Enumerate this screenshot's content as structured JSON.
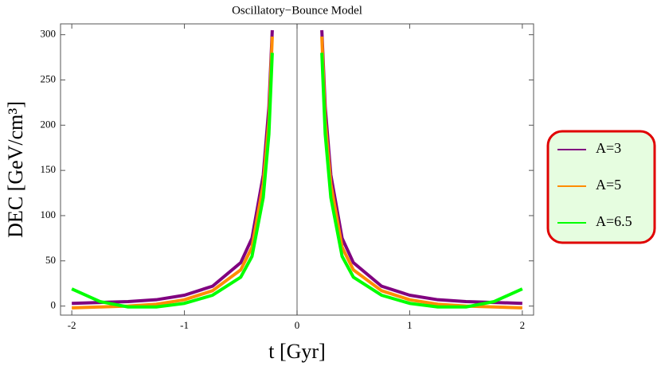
{
  "chart_data": {
    "type": "line",
    "title": "Oscillatory−Bounce Model",
    "x_label": "t [Gyr]",
    "y_label": "DEC [GeV/cm³]",
    "x": [
      -2,
      -1.75,
      -1.5,
      -1.25,
      -1,
      -0.75,
      -0.5,
      -0.4,
      -0.3,
      -0.25,
      -0.22,
      0,
      0.22,
      0.25,
      0.3,
      0.4,
      0.5,
      0.75,
      1,
      1.25,
      1.5,
      1.75,
      2
    ],
    "series": [
      {
        "name": "A=3",
        "color": "#800080",
        "values": [
          3,
          4,
          5,
          7,
          12,
          22,
          48,
          75,
          145,
          220,
          305,
          null,
          305,
          220,
          145,
          75,
          48,
          22,
          12,
          7,
          5,
          4,
          3
        ]
      },
      {
        "name": "A=5",
        "color": "#ff8c00",
        "values": [
          -2,
          -1,
          0,
          2,
          7,
          17,
          40,
          65,
          135,
          205,
          298,
          null,
          298,
          205,
          135,
          65,
          40,
          17,
          7,
          2,
          0,
          -1,
          -2
        ]
      },
      {
        "name": "A=6.5",
        "color": "#00ff00",
        "values": [
          19,
          5,
          -1,
          -1,
          3,
          12,
          32,
          55,
          120,
          190,
          280,
          null,
          280,
          190,
          120,
          55,
          32,
          12,
          3,
          -1,
          -1,
          5,
          19
        ]
      }
    ],
    "xlim": [
      -2.1,
      2.1
    ],
    "ylim": [
      -10,
      312
    ],
    "xticks": [
      -2,
      -1,
      0,
      1,
      2
    ],
    "yticks": [
      0,
      50,
      100,
      150,
      200,
      250,
      300
    ]
  }
}
